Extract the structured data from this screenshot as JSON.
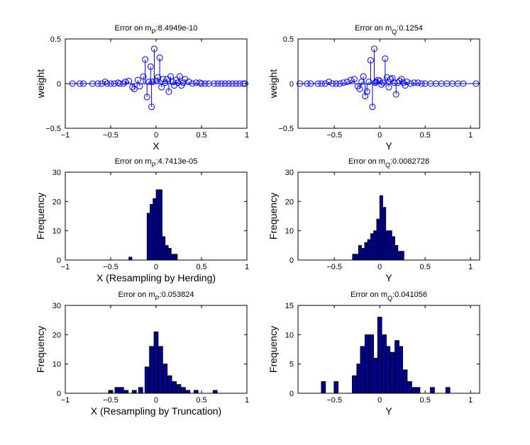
{
  "colors": {
    "stem": "#0000ff",
    "bar_fill": "#00008f",
    "bar_edge": "#000000",
    "axes": "#000000",
    "background": "#ffffff"
  },
  "chart_data": [
    {
      "type": "stem",
      "title": {
        "prefix": "Error on m",
        "sub": "P",
        "value": ":8.4949e-10"
      },
      "xlabel": "X",
      "ylabel": "weight",
      "xlim": [
        -1,
        1
      ],
      "ylim": [
        -0.5,
        0.5
      ],
      "xticks": [
        -1,
        -0.5,
        0,
        0.5,
        1
      ],
      "xtick_labels": [
        "−1",
        "−0.5",
        "0",
        "0.5",
        "1"
      ],
      "yticks": [
        -0.5,
        0,
        0.5
      ],
      "ytick_labels": [
        "−0.5",
        "0",
        "0.5"
      ],
      "x": [
        -0.92,
        -0.84,
        -0.8,
        -0.7,
        -0.64,
        -0.6,
        -0.56,
        -0.54,
        -0.5,
        -0.46,
        -0.42,
        -0.4,
        -0.36,
        -0.34,
        -0.3,
        -0.26,
        -0.24,
        -0.2,
        -0.18,
        -0.14,
        -0.12,
        -0.1,
        -0.08,
        -0.06,
        -0.05,
        -0.04,
        -0.02,
        0.0,
        0.02,
        0.04,
        0.06,
        0.08,
        0.1,
        0.12,
        0.14,
        0.16,
        0.18,
        0.2,
        0.22,
        0.24,
        0.26,
        0.28,
        0.3,
        0.32,
        0.36,
        0.4,
        0.44,
        0.48,
        0.5,
        0.54,
        0.58,
        0.64,
        0.68,
        0.72,
        0.76,
        0.8,
        0.84,
        0.88,
        0.92,
        0.96,
        0.98
      ],
      "y": [
        0,
        0,
        0,
        0,
        0,
        0,
        0.02,
        0,
        0,
        0,
        0.01,
        0,
        0,
        0.02,
        0.03,
        -0.04,
        -0.06,
        0.04,
        -0.03,
        0.08,
        0.27,
        -0.15,
        0.02,
        0.19,
        -0.26,
        0.02,
        0.39,
        0.03,
        0.07,
        0.29,
        -0.04,
        0.05,
        0.01,
        0.05,
        -0.09,
        0.08,
        0.02,
        -0.02,
        0.04,
        0.01,
        0.08,
        -0.02,
        0.01,
        0.05,
        0.02,
        0,
        0.01,
        0.01,
        0,
        0,
        0,
        0,
        0,
        0,
        0,
        0,
        0,
        0,
        0,
        0,
        0
      ]
    },
    {
      "type": "stem",
      "title": {
        "prefix": "Error on m",
        "sub": "Q",
        "value": ":0.1254"
      },
      "xlabel": "Y",
      "ylabel": "weight",
      "xlim": [
        -0.9,
        1.1
      ],
      "ylim": [
        -0.5,
        0.5
      ],
      "xticks": [
        -0.5,
        0,
        0.5,
        1
      ],
      "xtick_labels": [
        "−0.5",
        "0",
        "0.5",
        "1"
      ],
      "yticks": [
        -0.5,
        0,
        0.5
      ],
      "ytick_labels": [
        "−0.5",
        "0",
        "0.5"
      ],
      "x": [
        -0.88,
        -0.8,
        -0.76,
        -0.68,
        -0.64,
        -0.6,
        -0.56,
        -0.52,
        -0.48,
        -0.44,
        -0.4,
        -0.36,
        -0.32,
        -0.28,
        -0.24,
        -0.22,
        -0.2,
        -0.18,
        -0.16,
        -0.14,
        -0.12,
        -0.1,
        -0.08,
        -0.06,
        -0.05,
        -0.04,
        -0.02,
        0.0,
        0.02,
        0.04,
        0.06,
        0.08,
        0.1,
        0.12,
        0.14,
        0.16,
        0.18,
        0.2,
        0.22,
        0.24,
        0.26,
        0.28,
        0.3,
        0.34,
        0.38,
        0.42,
        0.46,
        0.5,
        0.56,
        0.62,
        0.68,
        0.74,
        0.8,
        0.86,
        0.92,
        1.06
      ],
      "y": [
        0,
        0,
        0,
        0,
        0,
        0,
        0.02,
        0,
        0,
        0,
        0.01,
        0.02,
        0.04,
        0.05,
        -0.03,
        -0.06,
        0.02,
        0.08,
        -0.14,
        -0.09,
        0.02,
        0.26,
        -0.26,
        0.39,
        0.01,
        0.02,
        0.04,
        0.03,
        -0.01,
        0.01,
        0.28,
        0.07,
        -0.04,
        0.05,
        0.06,
        0.01,
        -0.12,
        0.01,
        0.03,
        0.05,
        0.01,
        -0.02,
        0.02,
        0,
        0.01,
        0.01,
        0,
        0,
        0,
        0,
        0,
        0,
        0,
        0,
        0,
        0
      ]
    },
    {
      "type": "bar",
      "title": {
        "prefix": "Error on m",
        "sub": "P",
        "value": ":4.7413e-05"
      },
      "xlabel": "X (Resampling by Herding)",
      "ylabel": "Frequency",
      "xlim": [
        -1,
        1
      ],
      "ylim": [
        0,
        30
      ],
      "xticks": [
        -1,
        -0.5,
        0,
        0.5,
        1
      ],
      "xtick_labels": [
        "−1",
        "−0.5",
        "0",
        "0.5",
        "1"
      ],
      "yticks": [
        0,
        10,
        20,
        30
      ],
      "ytick_labels": [
        "0",
        "10",
        "20",
        "30"
      ],
      "bin_width": 0.0333,
      "x": [
        -0.283,
        -0.183,
        -0.15,
        -0.117,
        -0.083,
        -0.05,
        -0.017,
        0.017,
        0.05,
        0.083,
        0.117,
        0.15,
        0.183,
        0.217,
        0.25
      ],
      "values": [
        1,
        0,
        0,
        0,
        16,
        19,
        21,
        24,
        24,
        8,
        5,
        4,
        2,
        2,
        0
      ]
    },
    {
      "type": "bar",
      "title": {
        "prefix": "Error on m",
        "sub": "Q",
        "value": ":0.0082728"
      },
      "xlabel": "Y",
      "ylabel": "Frequency",
      "xlim": [
        -0.9,
        1.1
      ],
      "ylim": [
        0,
        30
      ],
      "xticks": [
        -0.5,
        0,
        0.5,
        1
      ],
      "xtick_labels": [
        "−0.5",
        "0",
        "0.5",
        "1"
      ],
      "yticks": [
        0,
        10,
        20,
        30
      ],
      "ytick_labels": [
        "0",
        "10",
        "20",
        "30"
      ],
      "bin_width": 0.0333,
      "x": [
        -0.283,
        -0.25,
        -0.217,
        -0.183,
        -0.15,
        -0.117,
        -0.083,
        -0.05,
        -0.017,
        0.017,
        0.05,
        0.083,
        0.117,
        0.15,
        0.183,
        0.217,
        0.25
      ],
      "values": [
        2,
        2,
        5,
        4,
        6,
        7,
        9,
        10,
        14,
        22,
        18,
        10,
        10,
        8,
        5,
        3,
        3
      ]
    },
    {
      "type": "bar",
      "title": {
        "prefix": "Error on m",
        "sub": "P",
        "value": ":0.053824"
      },
      "xlabel": "X  (Resampling by Truncation)",
      "ylabel": "Frequency",
      "xlim": [
        -1,
        1
      ],
      "ylim": [
        0,
        30
      ],
      "xticks": [
        -1,
        -0.5,
        0,
        0.5,
        1
      ],
      "xtick_labels": [
        "−1",
        "−0.5",
        "0",
        "0.5",
        "1"
      ],
      "yticks": [
        0,
        10,
        20,
        30
      ],
      "ytick_labels": [
        "0",
        "10",
        "20",
        "30"
      ],
      "bin_width": 0.0463,
      "x": [
        -0.5,
        -0.43,
        -0.38,
        -0.33,
        -0.24,
        -0.17,
        -0.1,
        -0.05,
        0.0,
        0.05,
        0.1,
        0.15,
        0.2,
        0.25,
        0.3,
        0.35,
        0.44,
        0.65
      ],
      "values": [
        1,
        2,
        2,
        1,
        1,
        2,
        9,
        16,
        21,
        16,
        10,
        6,
        4,
        3,
        2,
        1,
        1,
        1
      ]
    },
    {
      "type": "bar",
      "title": {
        "prefix": "Error on m",
        "sub": "Q",
        "value": ":0.041056"
      },
      "xlabel": "Y",
      "ylabel": "Frequency",
      "xlim": [
        -0.9,
        1.1
      ],
      "ylim": [
        0,
        15
      ],
      "xticks": [
        -0.5,
        0,
        0.5,
        1
      ],
      "xtick_labels": [
        "−0.5",
        "0",
        "0.5",
        "1"
      ],
      "yticks": [
        0,
        5,
        10,
        15
      ],
      "ytick_labels": [
        "0",
        "5",
        "10",
        "15"
      ],
      "bin_width": 0.0463,
      "x": [
        -0.62,
        -0.48,
        -0.28,
        -0.23,
        -0.19,
        -0.14,
        -0.09,
        -0.05,
        0.0,
        0.05,
        0.09,
        0.14,
        0.19,
        0.23,
        0.28,
        0.33,
        0.37,
        0.42,
        0.58,
        0.75
      ],
      "values": [
        2,
        2,
        3,
        5,
        8,
        10,
        10,
        6,
        13,
        10,
        8,
        7,
        9,
        8,
        4,
        2,
        1,
        1,
        1,
        1
      ]
    }
  ]
}
